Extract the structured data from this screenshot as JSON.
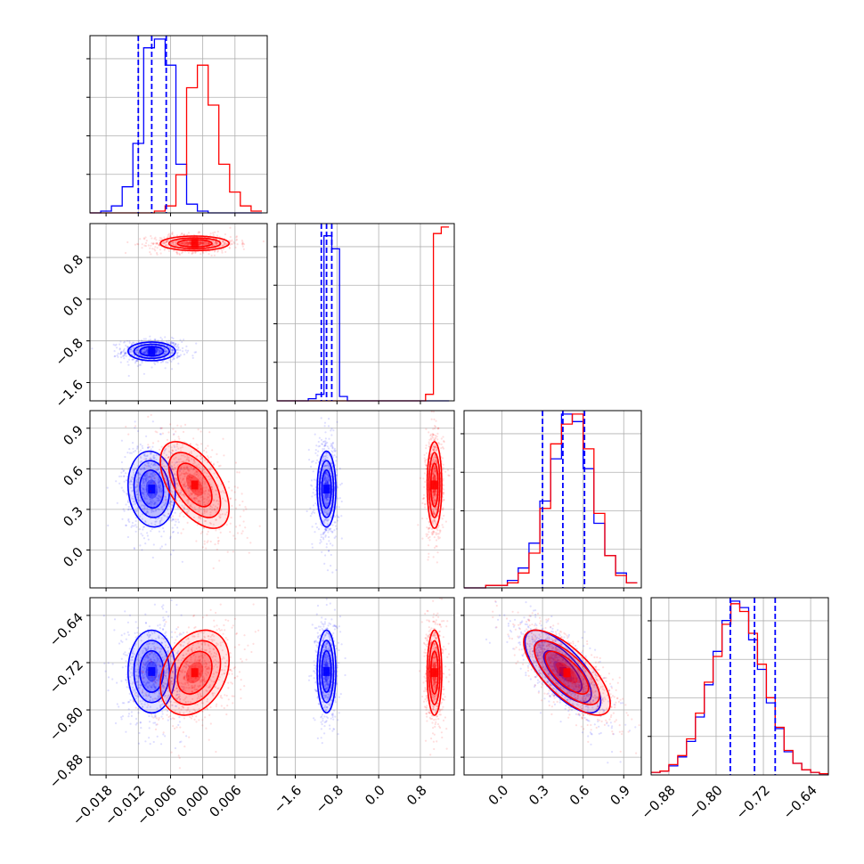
{
  "chart_data": {
    "type": "corner",
    "title": "",
    "grid": true,
    "parameters": [
      {
        "range": [
          -0.021,
          0.012
        ],
        "ticks": [
          "−0.018",
          "−0.012",
          "−0.006",
          "0.000",
          "0.006"
        ],
        "tick_values": [
          -0.018,
          -0.012,
          -0.006,
          0.0,
          0.006
        ]
      },
      {
        "range": [
          -1.95,
          1.45
        ],
        "ticks": [
          "−1.6",
          "−0.8",
          "0.0",
          "0.8"
        ],
        "tick_values": [
          -1.6,
          -0.8,
          0.0,
          0.8
        ]
      },
      {
        "range": [
          -0.28,
          1.03
        ],
        "ticks": [
          "0.0",
          "0.3",
          "0.6",
          "0.9"
        ],
        "tick_values": [
          0.0,
          0.3,
          0.6,
          0.9
        ]
      },
      {
        "range": [
          -0.91,
          -0.61
        ],
        "ticks": [
          "−0.88",
          "−0.80",
          "−0.72",
          "−0.64"
        ],
        "tick_values": [
          -0.88,
          -0.8,
          -0.72,
          -0.64
        ]
      }
    ],
    "series": [
      {
        "color": "#0000ff",
        "means": [
          -0.0095,
          -1.0,
          0.45,
          -0.735
        ],
        "sigmas": [
          0.0022,
          0.09,
          0.14,
          0.035
        ],
        "corr": {
          "0-2": -0.1,
          "0-3": 0.0,
          "1-2": 0.0,
          "1-3": 0.0,
          "2-3": -0.72
        }
      },
      {
        "color": "#ff0000",
        "means": [
          -0.0015,
          1.07,
          0.48,
          -0.737
        ],
        "sigmas": [
          0.0032,
          0.07,
          0.16,
          0.036
        ],
        "corr": {
          "0-2": -0.55,
          "0-3": 0.3,
          "1-2": 0.0,
          "1-3": 0.0,
          "2-3": -0.72
        }
      }
    ],
    "quantile_lines": [
      [
        -0.012,
        -0.0095,
        -0.0068
      ],
      [
        -1.1,
        -1.0,
        -0.9
      ],
      [
        0.3,
        0.45,
        0.61
      ],
      [
        -0.776,
        -0.735,
        -0.7
      ]
    ],
    "histograms": {
      "d0": {
        "edges": [
          -0.021,
          -0.019,
          -0.017,
          -0.015,
          -0.013,
          -0.011,
          -0.009,
          -0.007,
          -0.005,
          -0.003,
          -0.001,
          0.001,
          0.003,
          0.005,
          0.007,
          0.009,
          0.011
        ],
        "blue": [
          0,
          1,
          4,
          15,
          40,
          95,
          100,
          85,
          28,
          5,
          1,
          0,
          0,
          0,
          0,
          0
        ],
        "red": [
          0,
          0,
          0,
          0,
          0,
          0,
          1,
          4,
          22,
          72,
          85,
          62,
          28,
          12,
          4,
          1
        ]
      },
      "d1": {
        "edges": [
          -1.95,
          -1.8,
          -1.65,
          -1.5,
          -1.35,
          -1.2,
          -1.05,
          -0.9,
          -0.75,
          -0.6,
          -0.45,
          -0.3,
          -0.15,
          0.0,
          0.15,
          0.3,
          0.45,
          0.6,
          0.75,
          0.9,
          1.05,
          1.2,
          1.35
        ],
        "blue": [
          0,
          0,
          0,
          0,
          1,
          3,
          76,
          70,
          2,
          0,
          0,
          0,
          0,
          0,
          0,
          0,
          0,
          0,
          0,
          0,
          0,
          0
        ],
        "red": [
          0,
          0,
          0,
          0,
          0,
          0,
          0,
          0,
          0,
          0,
          0,
          0,
          0,
          0,
          0,
          0,
          0,
          0,
          0,
          3,
          77,
          80
        ]
      },
      "d2": {
        "edges": [
          -0.28,
          -0.2,
          -0.12,
          -0.04,
          0.04,
          0.12,
          0.2,
          0.28,
          0.36,
          0.44,
          0.52,
          0.6,
          0.68,
          0.76,
          0.84,
          0.92,
          1.0
        ],
        "blue": [
          0,
          0,
          1,
          1,
          3,
          8,
          18,
          35,
          52,
          70,
          67,
          48,
          26,
          13,
          6,
          2
        ],
        "red": [
          0,
          0,
          1,
          1,
          2,
          6,
          14,
          32,
          58,
          66,
          70,
          56,
          30,
          13,
          5,
          2
        ]
      },
      "d3": {
        "edges": [
          -0.91,
          -0.895,
          -0.88,
          -0.865,
          -0.85,
          -0.835,
          -0.82,
          -0.805,
          -0.79,
          -0.775,
          -0.76,
          -0.745,
          -0.73,
          -0.715,
          -0.7,
          -0.685,
          -0.67,
          -0.655,
          -0.64,
          -0.625,
          -0.61
        ],
        "blue": [
          2,
          3,
          7,
          14,
          26,
          45,
          70,
          96,
          120,
          135,
          130,
          105,
          82,
          56,
          36,
          18,
          9,
          4,
          2,
          1
        ],
        "red": [
          2,
          3,
          8,
          15,
          28,
          48,
          72,
          92,
          117,
          133,
          127,
          110,
          86,
          60,
          37,
          19,
          9,
          4,
          2,
          1
        ]
      }
    }
  }
}
